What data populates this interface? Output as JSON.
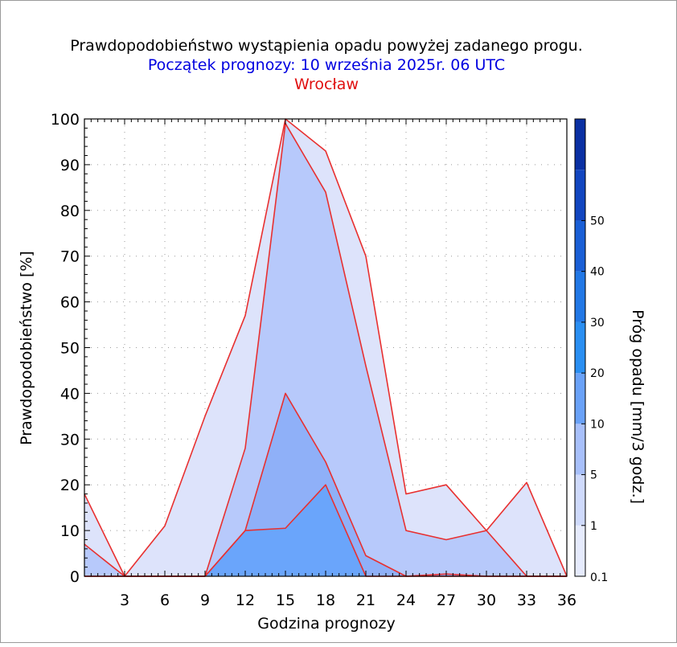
{
  "chart_data": {
    "type": "area",
    "title": "Prawdopodobieństwo wystąpienia opadu powyżej zadanego progu.",
    "subtitle": "Początek prognozy: 10 września 2025r. 06 UTC",
    "location": "Wrocław",
    "xlabel": "Godzina prognozy",
    "ylabel": "Prawdopodobieństwo [%]",
    "colorbar_label": "Próg opadu [mm/3 godz.]",
    "xlim": [
      0,
      36
    ],
    "ylim": [
      0,
      100
    ],
    "x_ticks": [
      3,
      6,
      9,
      12,
      15,
      18,
      21,
      24,
      27,
      30,
      33,
      36
    ],
    "y_ticks": [
      0,
      10,
      20,
      30,
      40,
      50,
      60,
      70,
      80,
      90,
      100
    ],
    "grid": true,
    "x": [
      0,
      3,
      6,
      9,
      12,
      15,
      18,
      21,
      24,
      27,
      30,
      33,
      36
    ],
    "series": [
      {
        "name": "0.1",
        "color": "#dde3fb",
        "values": [
          18,
          0,
          11,
          35,
          57,
          100,
          93,
          70,
          18,
          20,
          10,
          20.5,
          0
        ]
      },
      {
        "name": "1",
        "color": "#b7c9fb",
        "values": [
          7,
          0,
          0,
          0,
          28,
          99,
          84,
          46,
          10,
          8,
          10,
          0,
          0
        ]
      },
      {
        "name": "5",
        "color": "#8fb0f8",
        "values": [
          0,
          0,
          0,
          0,
          10,
          40,
          25,
          4.5,
          0,
          0.5,
          0,
          0,
          0
        ]
      },
      {
        "name": "10",
        "color": "#6aa5fb",
        "values": [
          0,
          0,
          0,
          0,
          10,
          10.5,
          20,
          0,
          0,
          0,
          0,
          0,
          0
        ]
      }
    ],
    "colorbar": {
      "labels": [
        "0.1",
        "1",
        "5",
        "10",
        "20",
        "30",
        "40",
        "50"
      ],
      "colors": [
        "#e6ebfd",
        "#cfdafc",
        "#a8c0fb",
        "#6aa2f8",
        "#2a8ff2",
        "#2278e6",
        "#1a5fd6",
        "#1246c0",
        "#0a30a3"
      ]
    },
    "colors": {
      "title": "#000000",
      "subtitle": "#0000e0",
      "location": "#e01010",
      "outline": "#e83030",
      "grid": "#9a9a9a"
    }
  }
}
